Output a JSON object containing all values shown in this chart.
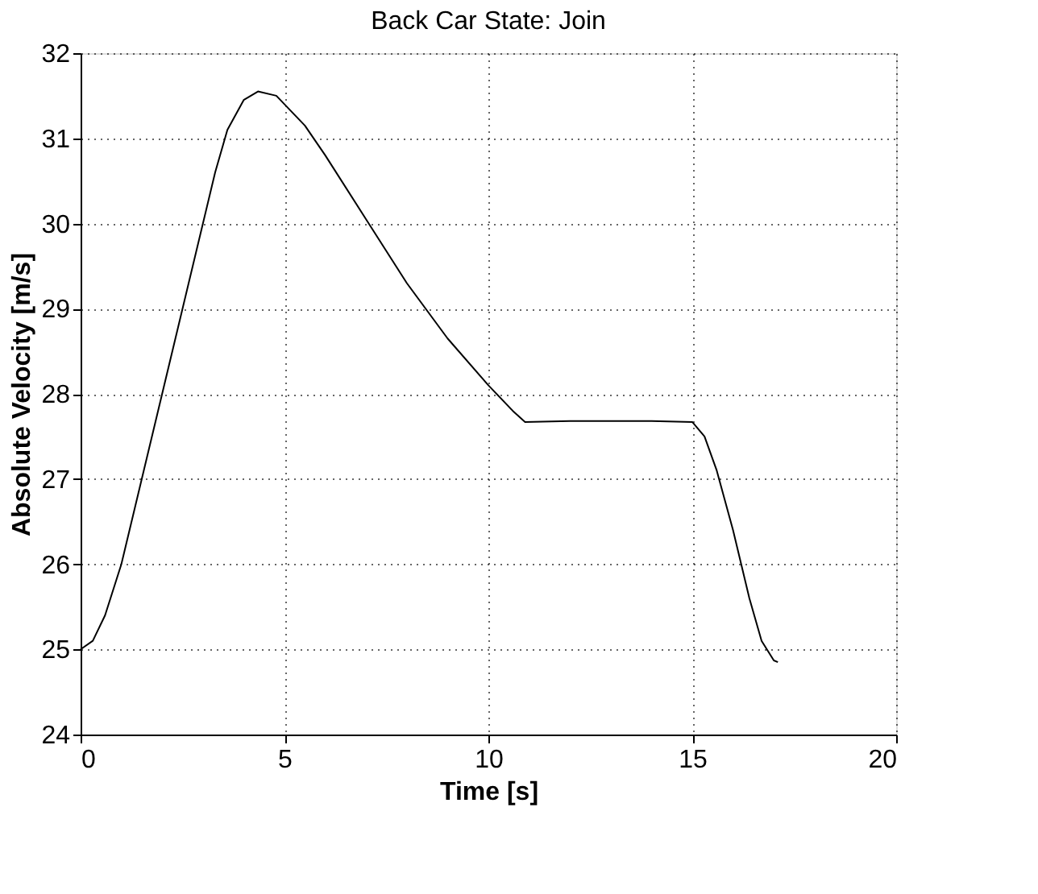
{
  "chart_data": {
    "type": "line",
    "title": "Back Car State: Join",
    "xlabel": "Time [s]",
    "ylabel": "Absolute Velocity [m/s]",
    "xlim": [
      0,
      20
    ],
    "xticks": [
      0,
      5,
      10,
      15,
      20
    ],
    "ylim": [
      24,
      32
    ],
    "yticks": [
      24,
      25,
      26,
      27,
      28,
      29,
      30,
      31,
      32
    ],
    "grid": true,
    "line_style": "solid",
    "series": [
      {
        "color": "#000000",
        "x": [
          0,
          0.3,
          0.6,
          1,
          1.5,
          2,
          2.5,
          3,
          3.3,
          3.6,
          4.0,
          4.35,
          4.8,
          5.5,
          6,
          7,
          8,
          9,
          10,
          10.6,
          10.9,
          12,
          14,
          15,
          15.3,
          15.6,
          16,
          16.4,
          16.7,
          17.0,
          17.1
        ],
        "values": [
          25.0,
          25.1,
          25.4,
          26.0,
          27.0,
          28.0,
          29.0,
          30.0,
          30.6,
          31.1,
          31.45,
          31.55,
          31.5,
          31.15,
          30.8,
          30.05,
          29.3,
          28.65,
          28.1,
          27.8,
          27.67,
          27.68,
          27.68,
          27.67,
          27.5,
          27.1,
          26.4,
          25.6,
          25.1,
          24.87,
          24.85
        ]
      }
    ]
  }
}
